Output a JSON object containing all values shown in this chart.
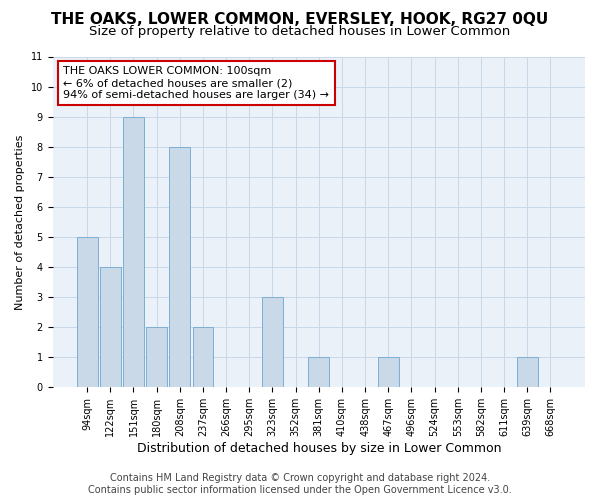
{
  "title": "THE OAKS, LOWER COMMON, EVERSLEY, HOOK, RG27 0QU",
  "subtitle": "Size of property relative to detached houses in Lower Common",
  "xlabel": "Distribution of detached houses by size in Lower Common",
  "ylabel": "Number of detached properties",
  "categories": [
    "94sqm",
    "122sqm",
    "151sqm",
    "180sqm",
    "208sqm",
    "237sqm",
    "266sqm",
    "295sqm",
    "323sqm",
    "352sqm",
    "381sqm",
    "410sqm",
    "438sqm",
    "467sqm",
    "496sqm",
    "524sqm",
    "553sqm",
    "582sqm",
    "611sqm",
    "639sqm",
    "668sqm"
  ],
  "values": [
    5,
    4,
    9,
    2,
    8,
    2,
    0,
    0,
    3,
    0,
    1,
    0,
    0,
    1,
    0,
    0,
    0,
    0,
    0,
    1,
    0
  ],
  "bar_color": "#c9d9e8",
  "bar_edge_color": "#7bafd4",
  "annotation_box_text": "THE OAKS LOWER COMMON: 100sqm\n← 6% of detached houses are smaller (2)\n94% of semi-detached houses are larger (34) →",
  "annotation_box_edge_color": "#cc0000",
  "annotation_box_bg": "#ffffff",
  "ylim": [
    0,
    11
  ],
  "yticks": [
    0,
    1,
    2,
    3,
    4,
    5,
    6,
    7,
    8,
    9,
    10,
    11
  ],
  "grid_color": "#c8d8e8",
  "bg_color": "#eaf1f8",
  "footer_line1": "Contains HM Land Registry data © Crown copyright and database right 2024.",
  "footer_line2": "Contains public sector information licensed under the Open Government Licence v3.0.",
  "title_fontsize": 11,
  "subtitle_fontsize": 9.5,
  "xlabel_fontsize": 9,
  "ylabel_fontsize": 8,
  "tick_fontsize": 7,
  "footer_fontsize": 7,
  "annotation_fontsize": 8
}
